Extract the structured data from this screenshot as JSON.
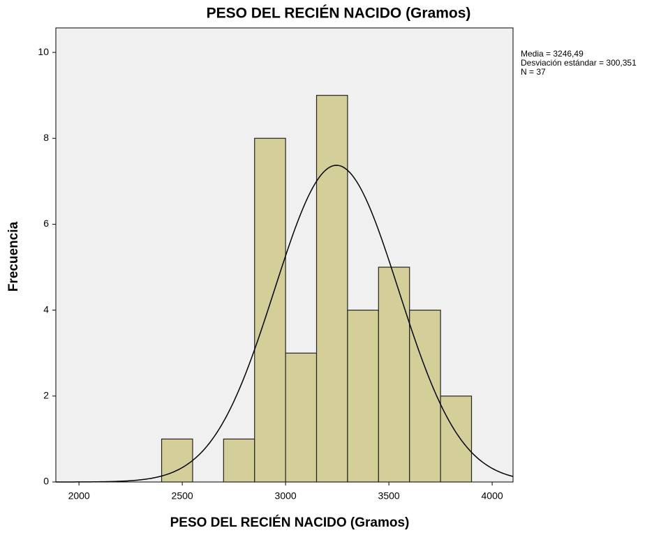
{
  "chart_data": {
    "type": "histogram",
    "title": "PESO DEL RECIÉN NACIDO (Gramos)",
    "x_label": "PESO DEL RECIÉN NACIDO (Gramos)",
    "y_label": "Frecuencia",
    "bins": [
      2400,
      2550,
      2700,
      2850,
      3000,
      3150,
      3300,
      3450,
      3600,
      3750,
      3900
    ],
    "values": [
      1,
      0,
      1,
      8,
      3,
      9,
      4,
      5,
      4,
      2
    ],
    "color": "#d4cf98",
    "xlim": [
      1888,
      4101
    ],
    "xticks": [
      2000,
      2500,
      3000,
      3500,
      4000
    ],
    "ylim": [
      0,
      10.57
    ],
    "yticks": [
      0,
      2,
      4,
      6,
      8,
      10
    ],
    "stats": [
      {
        "value": 3246.49,
        "label": "Media = 3246,49"
      },
      {
        "value": 300.351,
        "label": "Desviación estándar = 300,351"
      },
      {
        "value": 37,
        "label": "N = 37"
      }
    ]
  }
}
